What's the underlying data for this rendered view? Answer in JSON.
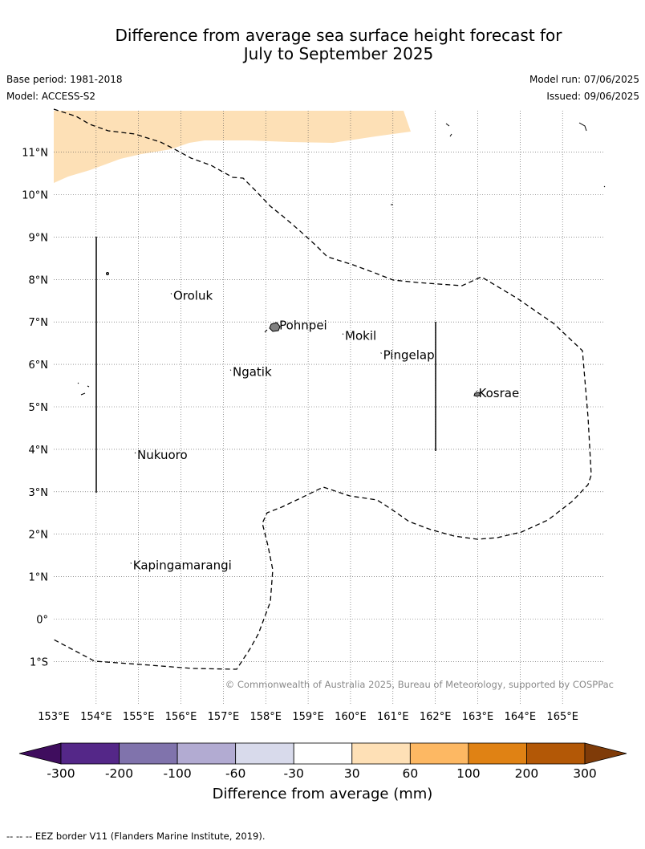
{
  "header": {
    "title_line1": "Difference from average sea surface height forecast for",
    "title_line2": "July to September 2025",
    "base_period": "Base period: 1981-2018",
    "model": "Model: ACCESS-S2",
    "model_run": "Model run: 07/06/2025",
    "issued": "Issued: 09/06/2025"
  },
  "map": {
    "extent": {
      "lon_min": 153,
      "lon_max": 166,
      "lat_min": -2,
      "lat_max": 12
    },
    "lon_ticks": [
      "153°E",
      "154°E",
      "155°E",
      "156°E",
      "157°E",
      "158°E",
      "159°E",
      "160°E",
      "161°E",
      "162°E",
      "163°E",
      "164°E",
      "165°E"
    ],
    "lat_ticks": [
      "11°N",
      "10°N",
      "9°N",
      "8°N",
      "7°N",
      "6°N",
      "5°N",
      "4°N",
      "3°N",
      "2°N",
      "1°N",
      "0°",
      "1°S"
    ],
    "places": [
      {
        "name": "Oroluk",
        "lon": 155.8,
        "lat": 7.6
      },
      {
        "name": "Pohnpei",
        "lon": 158.3,
        "lat": 6.9
      },
      {
        "name": "Mokil",
        "lon": 159.85,
        "lat": 6.65
      },
      {
        "name": "Pingelap",
        "lon": 160.75,
        "lat": 6.2
      },
      {
        "name": "Ngatik",
        "lon": 157.2,
        "lat": 5.8
      },
      {
        "name": "Kosrae",
        "lon": 163.0,
        "lat": 5.3
      },
      {
        "name": "Nukuoro",
        "lon": 154.95,
        "lat": 3.85
      },
      {
        "name": "Kapingamarangi",
        "lon": 154.85,
        "lat": 1.25
      }
    ],
    "anomaly_shading_color": "#fde0b6",
    "copyright": "© Commonwealth of Australia 2025, Bureau of Meteorology, supported by COSPPac"
  },
  "colorbar": {
    "label": "Difference from average (mm)",
    "ticks": [
      "-300",
      "-200",
      "-100",
      "-60",
      "-30",
      "30",
      "60",
      "100",
      "200",
      "300"
    ],
    "colors": [
      "#3f0d5e",
      "#542788",
      "#8073ac",
      "#b2abd2",
      "#d8daeb",
      "#ffffff",
      "#fee0b6",
      "#fdb863",
      "#e08214",
      "#b35806",
      "#7f3b08"
    ]
  },
  "footer": {
    "legend_text": "--  --  -- EEZ border V11 (Flanders Marine Institute, 2019)."
  }
}
